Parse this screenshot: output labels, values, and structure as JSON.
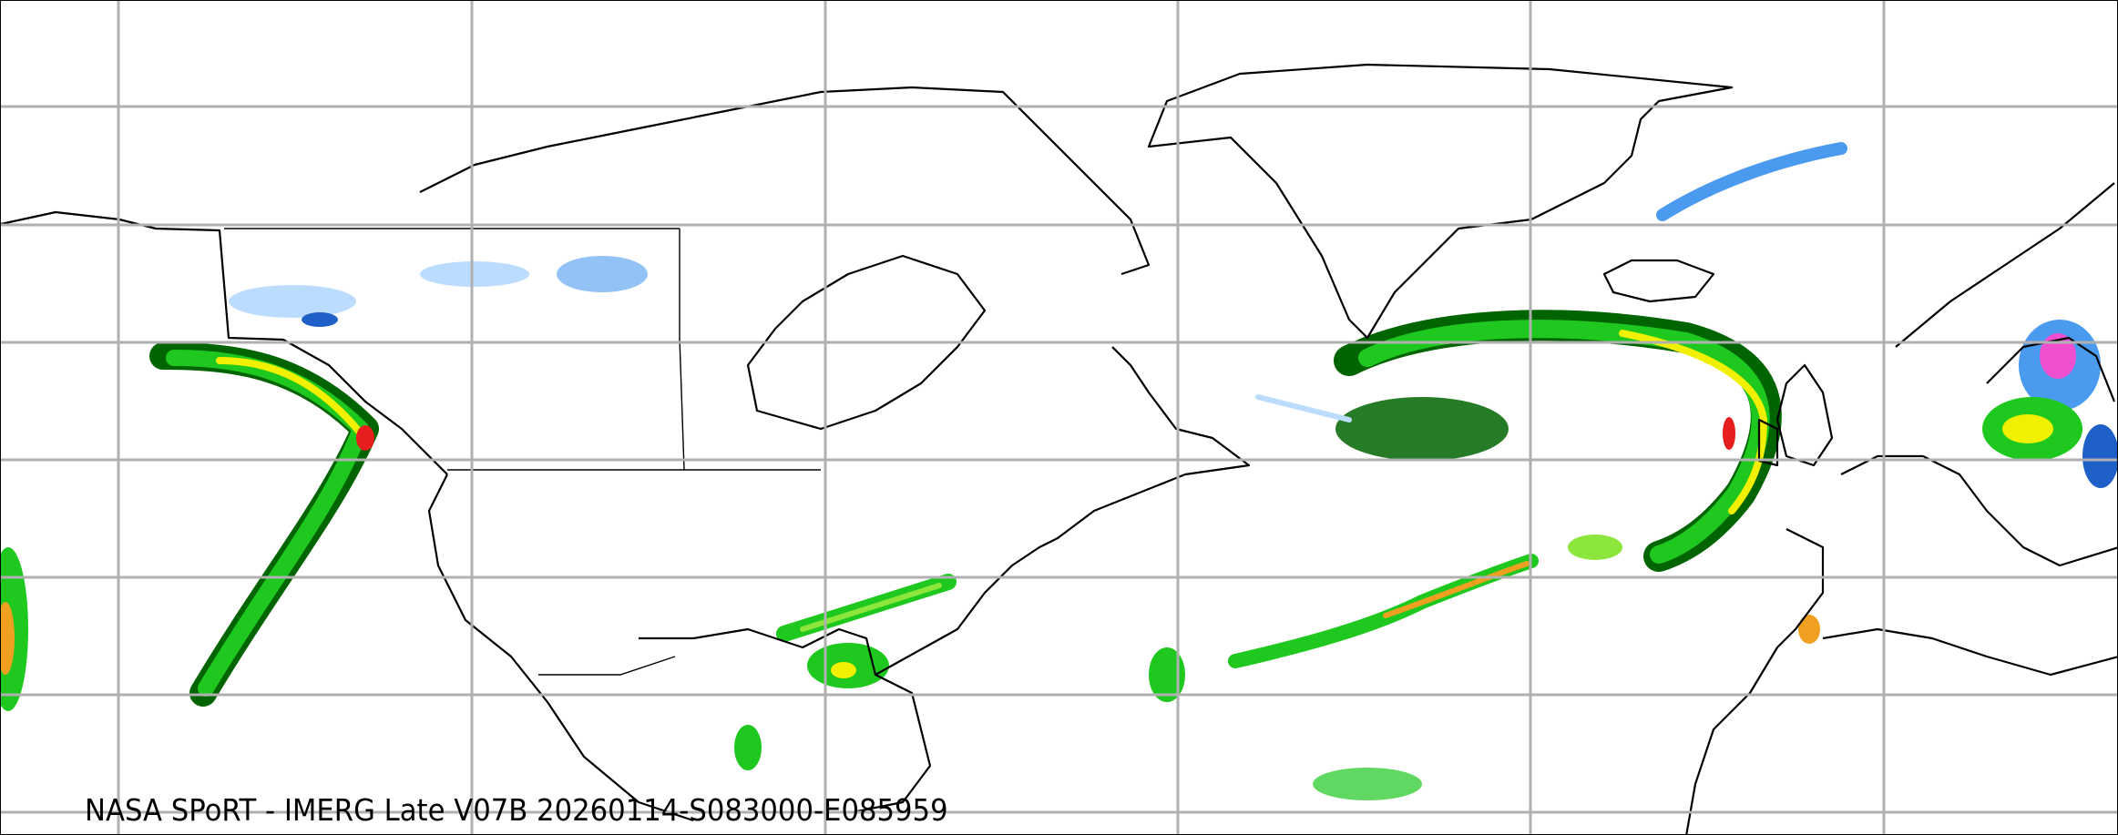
{
  "caption": "NASA SPoRT - IMERG Late V07B 20260114-S083000-E085959",
  "map": {
    "grid": true,
    "colors": {
      "grid": "#b0b0b0",
      "coastline": "#000000",
      "precip_very_light": "#bcdcff",
      "precip_light_blue": "#4a9af0",
      "precip_dark_blue": "#1e5fc8",
      "precip_dark_green": "#006400",
      "precip_green": "#1ec81e",
      "precip_light_green": "#8ce63c",
      "precip_yellow": "#f0f000",
      "precip_orange": "#f0a020",
      "precip_red": "#e61e1e",
      "precip_magenta": "#f050d0"
    }
  }
}
